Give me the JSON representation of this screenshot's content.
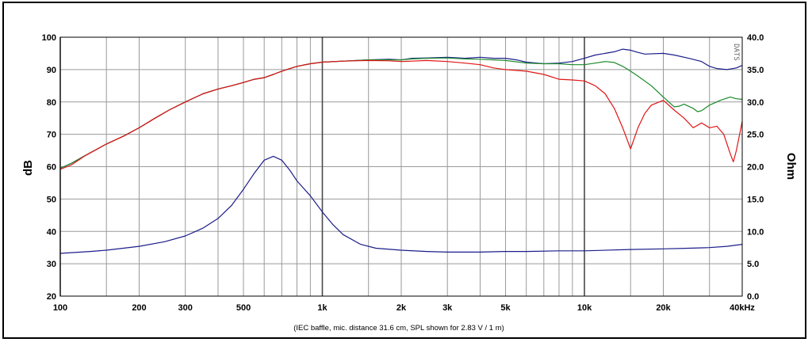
{
  "chart_data": {
    "type": "line",
    "caption": "(IEC baffle, mic. distance 31.6 cm, SPL shown for 2.83 V / 1 m)",
    "watermark": "DATS",
    "ylabel_left": "dB",
    "ylabel_right": "Ohm",
    "x_scale": "log",
    "xlim": [
      100,
      40000
    ],
    "ylim_left": [
      20,
      100
    ],
    "ylim_right": [
      0,
      40
    ],
    "grid": true,
    "x_major": [
      100,
      1000,
      10000
    ],
    "x_minor": [
      150,
      200,
      300,
      400,
      500,
      600,
      700,
      800,
      900,
      1500,
      2000,
      3000,
      4000,
      5000,
      6000,
      7000,
      8000,
      9000,
      15000,
      20000,
      30000,
      40000
    ],
    "x_ticks": [
      {
        "v": 100,
        "label": "100"
      },
      {
        "v": 200,
        "label": "200"
      },
      {
        "v": 300,
        "label": "300"
      },
      {
        "v": 500,
        "label": "500"
      },
      {
        "v": 1000,
        "label": "1k"
      },
      {
        "v": 2000,
        "label": "2k"
      },
      {
        "v": 3000,
        "label": "3k"
      },
      {
        "v": 5000,
        "label": "5k"
      },
      {
        "v": 10000,
        "label": "10k"
      },
      {
        "v": 20000,
        "label": "20k"
      },
      {
        "v": 40000,
        "label": "40kHz"
      }
    ],
    "y_left_ticks": [
      {
        "v": 20,
        "label": "20"
      },
      {
        "v": 30,
        "label": "30"
      },
      {
        "v": 40,
        "label": "40"
      },
      {
        "v": 50,
        "label": "50"
      },
      {
        "v": 60,
        "label": "60"
      },
      {
        "v": 70,
        "label": "70"
      },
      {
        "v": 80,
        "label": "80"
      },
      {
        "v": 90,
        "label": "90"
      },
      {
        "v": 100,
        "label": "100"
      }
    ],
    "y_right_ticks": [
      {
        "v": 0,
        "label": "0.0"
      },
      {
        "v": 5,
        "label": "5.0"
      },
      {
        "v": 10,
        "label": "10.0"
      },
      {
        "v": 15,
        "label": "15.0"
      },
      {
        "v": 20,
        "label": "20.0"
      },
      {
        "v": 25,
        "label": "25.0"
      },
      {
        "v": 30,
        "label": "30.0"
      },
      {
        "v": 35,
        "label": "35.0"
      },
      {
        "v": 40,
        "label": "40.0"
      }
    ],
    "series": [
      {
        "color": "#1c1c8c",
        "axis": "left",
        "points": [
          [
            100,
            59.5
          ],
          [
            110,
            61
          ],
          [
            125,
            63.5
          ],
          [
            150,
            67
          ],
          [
            175,
            69.5
          ],
          [
            200,
            72
          ],
          [
            230,
            75
          ],
          [
            260,
            77.5
          ],
          [
            300,
            80
          ],
          [
            350,
            82.5
          ],
          [
            400,
            84
          ],
          [
            450,
            85
          ],
          [
            500,
            86
          ],
          [
            550,
            87
          ],
          [
            600,
            87.5
          ],
          [
            650,
            88.5
          ],
          [
            700,
            89.5
          ],
          [
            800,
            91
          ],
          [
            900,
            91.8
          ],
          [
            1000,
            92.3
          ],
          [
            1200,
            92.6
          ],
          [
            1500,
            93
          ],
          [
            1800,
            93.2
          ],
          [
            2000,
            93
          ],
          [
            2200,
            93.5
          ],
          [
            2500,
            93.6
          ],
          [
            3000,
            93.8
          ],
          [
            3500,
            93.5
          ],
          [
            4000,
            93.8
          ],
          [
            4500,
            93.5
          ],
          [
            5000,
            93.5
          ],
          [
            5500,
            93
          ],
          [
            6000,
            92.3
          ],
          [
            7000,
            91.8
          ],
          [
            8000,
            92
          ],
          [
            9000,
            92.5
          ],
          [
            10000,
            93.5
          ],
          [
            11000,
            94.5
          ],
          [
            12000,
            95
          ],
          [
            13000,
            95.5
          ],
          [
            14000,
            96.3
          ],
          [
            15000,
            96
          ],
          [
            16000,
            95.3
          ],
          [
            17000,
            94.8
          ],
          [
            20000,
            95
          ],
          [
            22000,
            94.5
          ],
          [
            25000,
            93.5
          ],
          [
            28000,
            92.5
          ],
          [
            30000,
            91
          ],
          [
            32000,
            90.3
          ],
          [
            35000,
            90
          ],
          [
            38000,
            90.5
          ],
          [
            40000,
            91.3
          ]
        ]
      },
      {
        "color": "#1a8a2a",
        "axis": "left",
        "points": [
          [
            100,
            59.5
          ],
          [
            110,
            61
          ],
          [
            125,
            63.5
          ],
          [
            150,
            67
          ],
          [
            175,
            69.5
          ],
          [
            200,
            72
          ],
          [
            230,
            75
          ],
          [
            260,
            77.5
          ],
          [
            300,
            80
          ],
          [
            350,
            82.5
          ],
          [
            400,
            84
          ],
          [
            450,
            85
          ],
          [
            500,
            86
          ],
          [
            550,
            87
          ],
          [
            600,
            87.5
          ],
          [
            650,
            88.5
          ],
          [
            700,
            89.5
          ],
          [
            800,
            91
          ],
          [
            900,
            91.8
          ],
          [
            1000,
            92.3
          ],
          [
            1200,
            92.6
          ],
          [
            1500,
            93
          ],
          [
            1800,
            93
          ],
          [
            2000,
            93
          ],
          [
            2200,
            93.3
          ],
          [
            2500,
            93.5
          ],
          [
            3000,
            93.6
          ],
          [
            3500,
            93.3
          ],
          [
            4000,
            93.2
          ],
          [
            4500,
            93
          ],
          [
            5000,
            92.8
          ],
          [
            6000,
            92
          ],
          [
            7000,
            91.8
          ],
          [
            8000,
            91.8
          ],
          [
            9000,
            91.5
          ],
          [
            10000,
            91.5
          ],
          [
            11000,
            92
          ],
          [
            12000,
            92.5
          ],
          [
            13000,
            92.2
          ],
          [
            14000,
            91
          ],
          [
            15000,
            89.5
          ],
          [
            16000,
            88
          ],
          [
            18000,
            85
          ],
          [
            20000,
            81.5
          ],
          [
            22000,
            78.5
          ],
          [
            23000,
            78.7
          ],
          [
            24000,
            79.3
          ],
          [
            26000,
            78
          ],
          [
            27000,
            77
          ],
          [
            28000,
            77.3
          ],
          [
            30000,
            79
          ],
          [
            33000,
            80.5
          ],
          [
            36000,
            81.5
          ],
          [
            38000,
            81
          ],
          [
            40000,
            80.8
          ]
        ]
      },
      {
        "color": "#e01515",
        "axis": "left",
        "points": [
          [
            100,
            59.2
          ],
          [
            110,
            60.5
          ],
          [
            125,
            63.5
          ],
          [
            150,
            67
          ],
          [
            175,
            69.5
          ],
          [
            200,
            72
          ],
          [
            230,
            75
          ],
          [
            260,
            77.5
          ],
          [
            300,
            80
          ],
          [
            350,
            82.5
          ],
          [
            400,
            84
          ],
          [
            450,
            85
          ],
          [
            500,
            86
          ],
          [
            550,
            87
          ],
          [
            600,
            87.5
          ],
          [
            650,
            88.5
          ],
          [
            700,
            89.5
          ],
          [
            800,
            91
          ],
          [
            900,
            91.8
          ],
          [
            1000,
            92.3
          ],
          [
            1200,
            92.6
          ],
          [
            1500,
            92.8
          ],
          [
            1800,
            92.7
          ],
          [
            2000,
            92.5
          ],
          [
            2200,
            92.6
          ],
          [
            2500,
            92.8
          ],
          [
            3000,
            92.5
          ],
          [
            3500,
            92
          ],
          [
            4000,
            91.5
          ],
          [
            4500,
            90.5
          ],
          [
            5000,
            90
          ],
          [
            6000,
            89.5
          ],
          [
            7000,
            88.5
          ],
          [
            8000,
            87
          ],
          [
            9000,
            86.8
          ],
          [
            10000,
            86.5
          ],
          [
            11000,
            85
          ],
          [
            12000,
            82.5
          ],
          [
            13000,
            78
          ],
          [
            14000,
            72
          ],
          [
            15000,
            65.5
          ],
          [
            16000,
            72
          ],
          [
            17000,
            76.5
          ],
          [
            18000,
            79
          ],
          [
            20000,
            80.5
          ],
          [
            22000,
            77.5
          ],
          [
            24000,
            75
          ],
          [
            26000,
            72
          ],
          [
            28000,
            73.5
          ],
          [
            30000,
            72
          ],
          [
            32000,
            72.5
          ],
          [
            34000,
            70
          ],
          [
            36000,
            64
          ],
          [
            37000,
            61.5
          ],
          [
            38000,
            65
          ],
          [
            40000,
            74
          ]
        ]
      },
      {
        "color": "#1c1c8c",
        "axis": "right",
        "points": [
          [
            100,
            6.6
          ],
          [
            130,
            6.9
          ],
          [
            150,
            7.1
          ],
          [
            200,
            7.7
          ],
          [
            250,
            8.4
          ],
          [
            300,
            9.3
          ],
          [
            350,
            10.5
          ],
          [
            400,
            12
          ],
          [
            450,
            14
          ],
          [
            500,
            16.5
          ],
          [
            550,
            19
          ],
          [
            600,
            21
          ],
          [
            650,
            21.6
          ],
          [
            700,
            21
          ],
          [
            750,
            19.5
          ],
          [
            800,
            17.8
          ],
          [
            900,
            15.5
          ],
          [
            1000,
            13
          ],
          [
            1100,
            11
          ],
          [
            1200,
            9.5
          ],
          [
            1400,
            8
          ],
          [
            1600,
            7.4
          ],
          [
            2000,
            7.1
          ],
          [
            2500,
            6.9
          ],
          [
            3000,
            6.8
          ],
          [
            4000,
            6.8
          ],
          [
            5000,
            6.9
          ],
          [
            6000,
            6.9
          ],
          [
            8000,
            7
          ],
          [
            10000,
            7
          ],
          [
            15000,
            7.2
          ],
          [
            20000,
            7.3
          ],
          [
            25000,
            7.4
          ],
          [
            30000,
            7.5
          ],
          [
            35000,
            7.7
          ],
          [
            40000,
            8
          ]
        ]
      }
    ]
  }
}
